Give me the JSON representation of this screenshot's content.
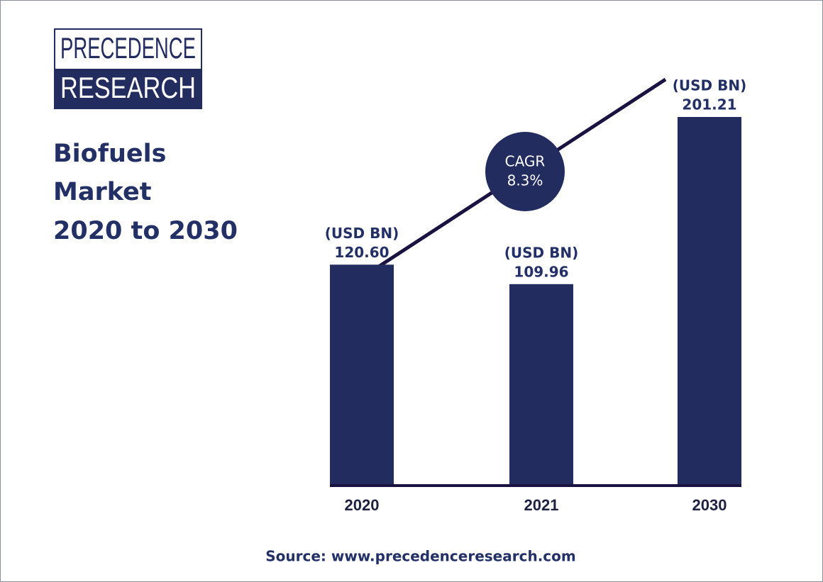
{
  "logo": {
    "line1": "PRECEDENCE",
    "line2": "RESEARCH"
  },
  "chart_data": {
    "type": "bar",
    "title": [
      "Biofuels",
      "Market",
      "2020 to 2030"
    ],
    "categories": [
      "2020",
      "2021",
      "2030"
    ],
    "values": [
      120.6,
      109.96,
      201.21
    ],
    "value_labels": [
      "120.60",
      "109.96",
      "201.21"
    ],
    "unit_label": "(USD BN)",
    "color": "#232c5f",
    "annotation": {
      "label": "CAGR",
      "value": "8.3%"
    }
  },
  "source": "Source: www.precedenceresearch.com"
}
